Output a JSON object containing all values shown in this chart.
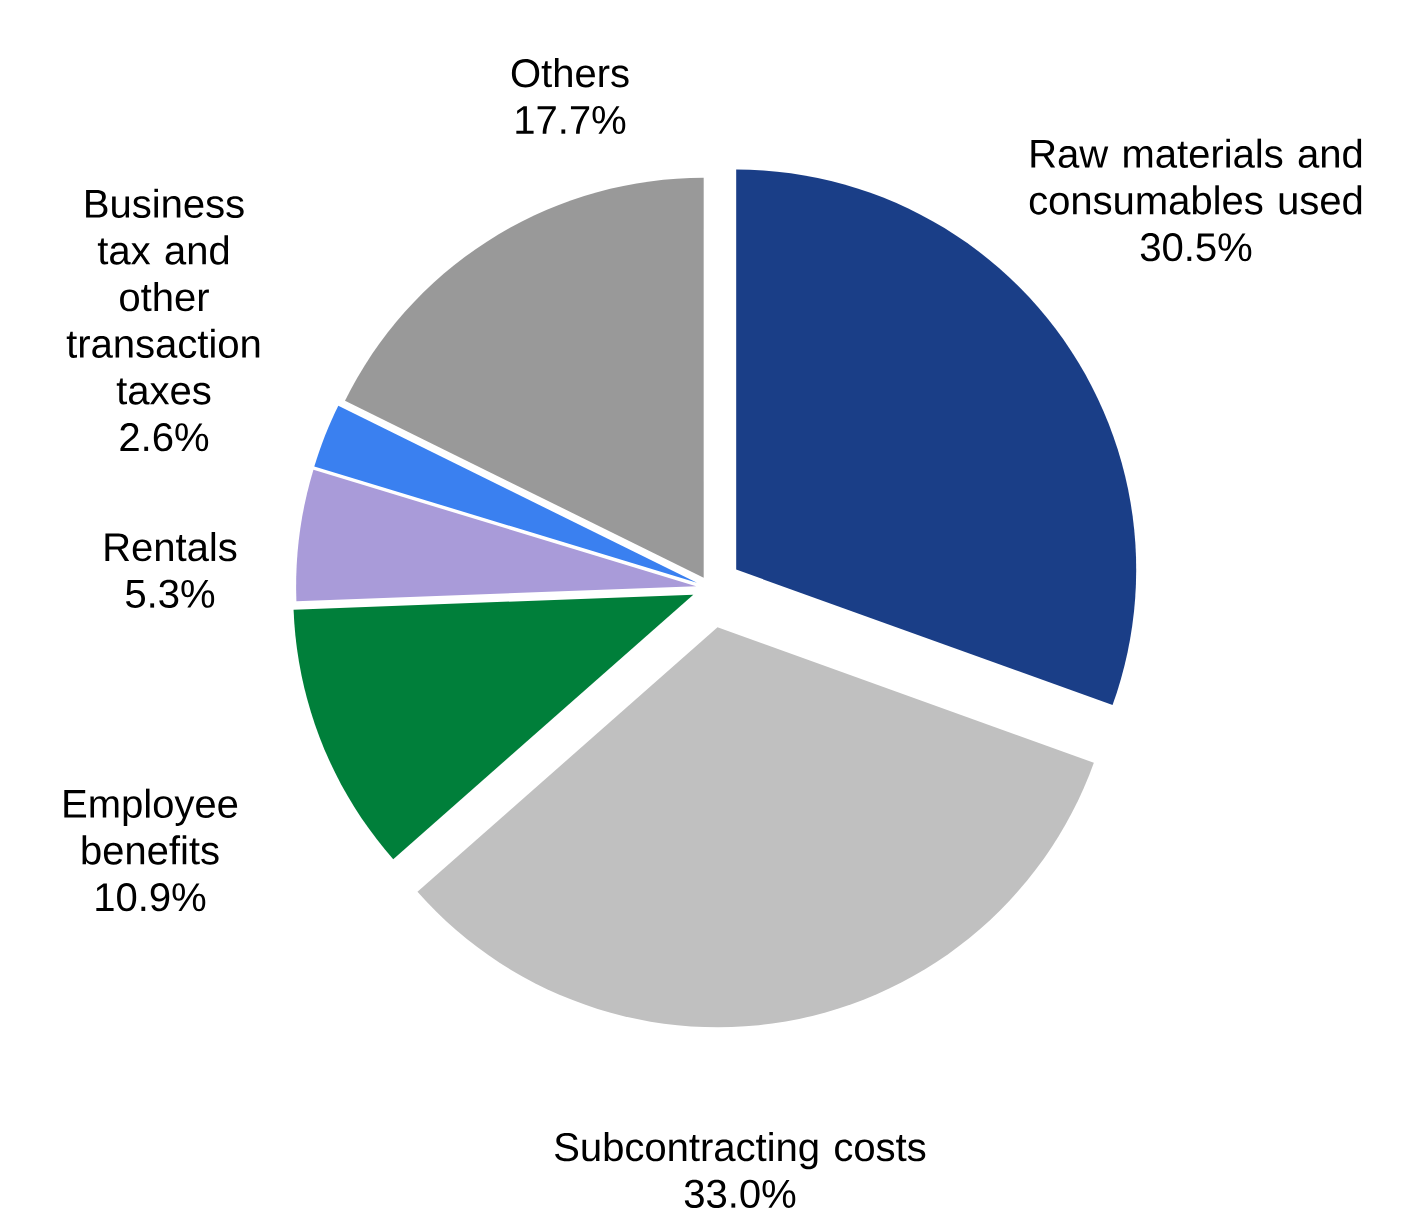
{
  "chart_data": {
    "type": "pie",
    "categories": [
      "Raw materials and consumables used",
      "Subcontracting costs",
      "Employee benefits",
      "Rentals",
      "Business tax and other transaction taxes",
      "Others"
    ],
    "values": [
      30.5,
      33.0,
      10.9,
      5.3,
      2.6,
      17.7
    ],
    "value_labels": [
      "30.5%",
      "33.0%",
      "10.9%",
      "5.3%",
      "2.6%",
      "17.7%"
    ],
    "colors": [
      "#1a3e87",
      "#c0c0c0",
      "#007f3a",
      "#a99bd9",
      "#3a80f0",
      "#999999"
    ]
  }
}
